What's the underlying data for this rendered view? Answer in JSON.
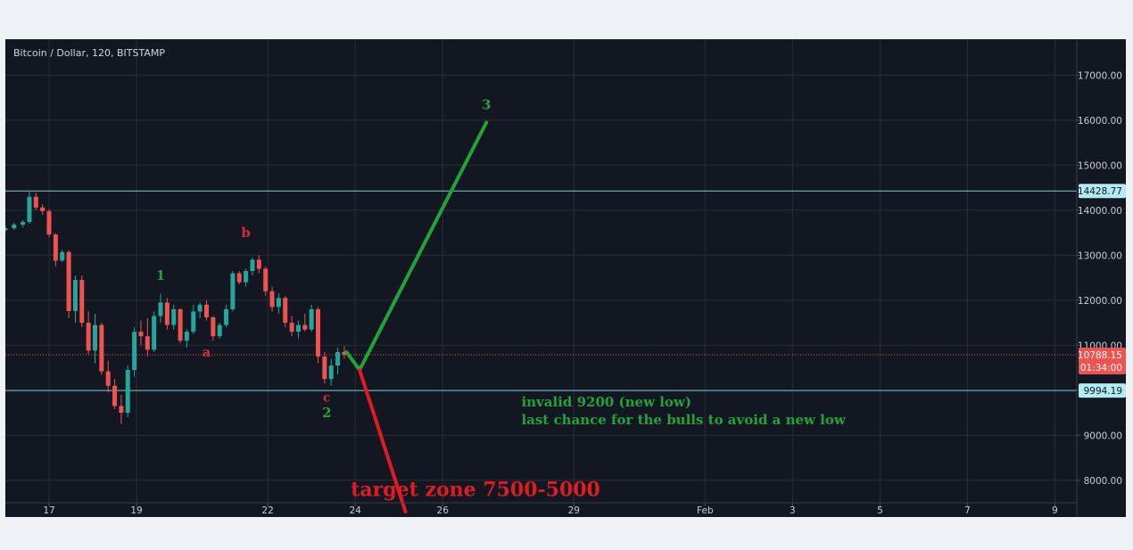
{
  "chart_data": {
    "type": "candlestick",
    "symbol": "Bitcoin / Dollar, 120, BITSTAMP",
    "y_axis": {
      "ticks": [
        8000,
        9000,
        10000,
        11000,
        12000,
        13000,
        14000,
        15000,
        16000,
        17000
      ],
      "labels": [
        "8000.00",
        "9000.00",
        "10000.00",
        "11000.00",
        "12000.00",
        "13000.00",
        "14000.00",
        "15000.00",
        "16000.00",
        "17000.00"
      ],
      "range": [
        7500,
        17800
      ]
    },
    "x_axis": {
      "labels": [
        "17",
        "19",
        "22",
        "24",
        "26",
        "29",
        "Feb",
        "3",
        "5",
        "7",
        "9"
      ],
      "range": [
        16,
        32.5
      ],
      "label_positions": [
        17,
        19,
        22,
        24,
        26,
        29,
        32,
        34,
        36,
        38,
        40
      ]
    },
    "x_map": {
      "domain_label": "calendar day; Feb 1 = 32",
      "range": [
        16,
        40.5
      ]
    },
    "horizontal_lines": [
      {
        "label": "14428.77",
        "value": 14428.77,
        "color": "#7fc4d4"
      },
      {
        "label": "9994.19",
        "value": 9994.19,
        "color": "#7fc4d4"
      }
    ],
    "price_line": {
      "label": "10788.15",
      "value": 10788.15,
      "countdown": "01:34:00",
      "color": "#ef5350"
    },
    "candles": [
      [
        16.0,
        13560,
        13640,
        13510,
        13600
      ],
      [
        16.2,
        13600,
        13720,
        13560,
        13680
      ],
      [
        16.4,
        13680,
        13780,
        13620,
        13740
      ],
      [
        16.55,
        13740,
        14430,
        13700,
        14300
      ],
      [
        16.7,
        14300,
        14390,
        14000,
        14060
      ],
      [
        16.85,
        14060,
        14130,
        13900,
        13980
      ],
      [
        17.0,
        13980,
        14020,
        13400,
        13460
      ],
      [
        17.15,
        13460,
        13490,
        12750,
        12880
      ],
      [
        17.3,
        12880,
        13120,
        12850,
        13070
      ],
      [
        17.45,
        13070,
        13110,
        11600,
        11760
      ],
      [
        17.6,
        11760,
        12550,
        11500,
        12450
      ],
      [
        17.75,
        12450,
        12550,
        11400,
        11500
      ],
      [
        17.9,
        11500,
        11750,
        10800,
        10880
      ],
      [
        18.05,
        10880,
        11700,
        10600,
        11450
      ],
      [
        18.2,
        11450,
        11500,
        10350,
        10420
      ],
      [
        18.35,
        10420,
        10650,
        9950,
        10100
      ],
      [
        18.5,
        10100,
        10250,
        9580,
        9650
      ],
      [
        18.65,
        9650,
        9900,
        9250,
        9500
      ],
      [
        18.8,
        9500,
        10550,
        9400,
        10450
      ],
      [
        18.95,
        10450,
        11400,
        10300,
        11300
      ],
      [
        19.1,
        11300,
        11550,
        11000,
        11200
      ],
      [
        19.25,
        11200,
        11600,
        10750,
        10900
      ],
      [
        19.4,
        10900,
        11750,
        10850,
        11650
      ],
      [
        19.55,
        11650,
        12150,
        11500,
        11950
      ],
      [
        19.7,
        11950,
        12050,
        11350,
        11450
      ],
      [
        19.85,
        11450,
        11900,
        11350,
        11800
      ],
      [
        20.0,
        11800,
        11820,
        11050,
        11100
      ],
      [
        20.15,
        11100,
        11350,
        10950,
        11300
      ],
      [
        20.3,
        11300,
        11900,
        11250,
        11750
      ],
      [
        20.45,
        11750,
        11950,
        11600,
        11900
      ],
      [
        20.6,
        11900,
        12000,
        11550,
        11620
      ],
      [
        20.75,
        11620,
        11650,
        11100,
        11200
      ],
      [
        20.9,
        11200,
        11500,
        11150,
        11450
      ],
      [
        21.05,
        11450,
        11900,
        11400,
        11800
      ],
      [
        21.2,
        11800,
        12650,
        11750,
        12600
      ],
      [
        21.35,
        12600,
        12650,
        12350,
        12400
      ],
      [
        21.5,
        12400,
        12700,
        12300,
        12650
      ],
      [
        21.65,
        12650,
        12950,
        12550,
        12900
      ],
      [
        21.8,
        12900,
        13000,
        12600,
        12700
      ],
      [
        21.95,
        12700,
        12750,
        12100,
        12200
      ],
      [
        22.1,
        12200,
        12300,
        11750,
        11850
      ],
      [
        22.25,
        11850,
        12150,
        11700,
        12050
      ],
      [
        22.4,
        12050,
        12100,
        11400,
        11500
      ],
      [
        22.55,
        11500,
        11650,
        11200,
        11300
      ],
      [
        22.7,
        11300,
        11550,
        11150,
        11450
      ],
      [
        22.85,
        11450,
        11700,
        11300,
        11350
      ],
      [
        23.0,
        11350,
        11900,
        11300,
        11800
      ],
      [
        23.15,
        11800,
        11850,
        10600,
        10750
      ],
      [
        23.3,
        10750,
        10850,
        10150,
        10250
      ],
      [
        23.45,
        10250,
        10700,
        10100,
        10550
      ],
      [
        23.6,
        10550,
        10950,
        10350,
        10850
      ],
      [
        23.75,
        10850,
        10980,
        10700,
        10788
      ]
    ],
    "drawings": [
      {
        "label": "green_up",
        "color": "#22a33a",
        "points": [
          [
            23.8,
            10850
          ],
          [
            24.1,
            10450
          ],
          [
            27.0,
            15950
          ]
        ]
      },
      {
        "label": "red_down",
        "color": "#e11b22",
        "points": [
          [
            24.1,
            10450
          ],
          [
            25.15,
            7300
          ]
        ]
      }
    ],
    "annotations": [
      {
        "text": "3",
        "x": 27.0,
        "y": 16250,
        "color": "#22a33a",
        "size": 15
      },
      {
        "text": "b",
        "x": 21.5,
        "y": 13400,
        "color": "#d42a33",
        "size": 15
      },
      {
        "text": "1",
        "x": 19.55,
        "y": 12450,
        "color": "#22a33a",
        "size": 15
      },
      {
        "text": "a",
        "x": 20.6,
        "y": 10750,
        "color": "#d42a33",
        "size": 15
      },
      {
        "text": "c",
        "x": 23.35,
        "y": 9750,
        "color": "#d42a33",
        "size": 14
      },
      {
        "text": "2",
        "x": 23.35,
        "y": 9400,
        "color": "#22a33a",
        "size": 15
      },
      {
        "text": "invalid 9200 (new low)",
        "x": 27.8,
        "y": 9640,
        "color": "#22a33a",
        "size": 15,
        "anchor": "start"
      },
      {
        "text": "last chance for the bulls to avoid a new low",
        "x": 27.8,
        "y": 9240,
        "color": "#22a33a",
        "size": 15,
        "anchor": "start"
      },
      {
        "text": "target zone 7500-5000",
        "x": 23.9,
        "y": 7650,
        "color": "#e11b22",
        "size": 22,
        "anchor": "start"
      }
    ]
  }
}
